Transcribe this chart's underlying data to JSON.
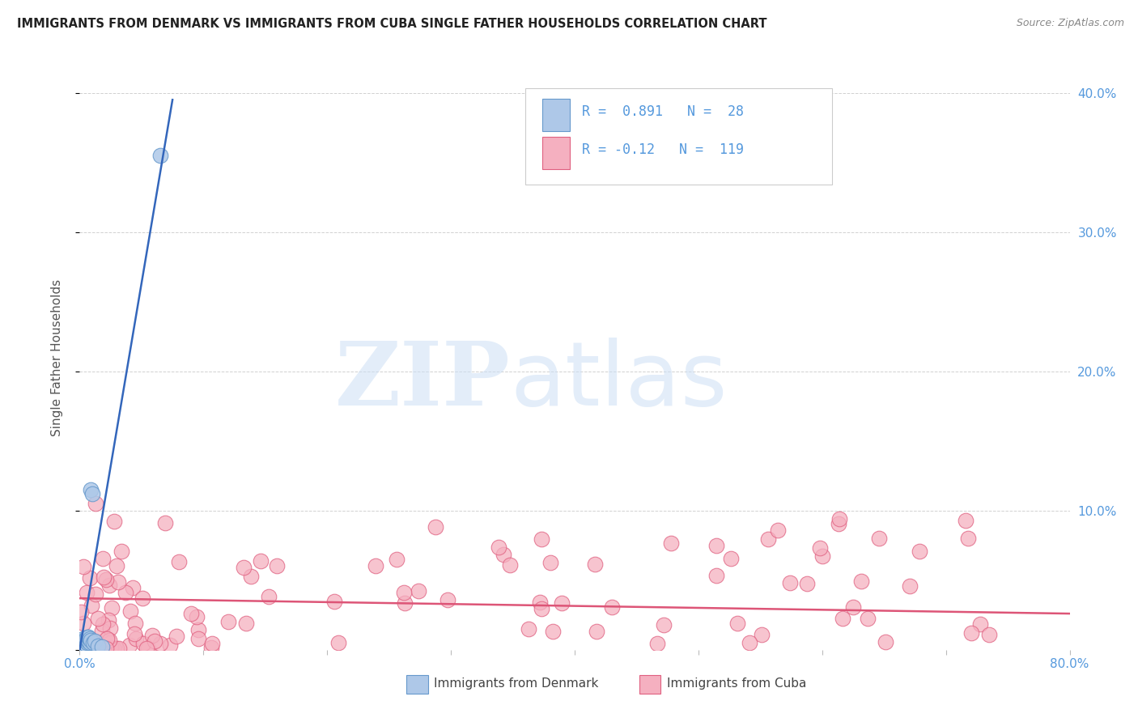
{
  "title": "IMMIGRANTS FROM DENMARK VS IMMIGRANTS FROM CUBA SINGLE FATHER HOUSEHOLDS CORRELATION CHART",
  "source": "Source: ZipAtlas.com",
  "ylabel": "Single Father Households",
  "xlim": [
    0.0,
    0.8
  ],
  "ylim": [
    0.0,
    0.42
  ],
  "x_ticks": [
    0.0,
    0.1,
    0.2,
    0.3,
    0.4,
    0.5,
    0.6,
    0.7,
    0.8
  ],
  "y_ticks": [
    0.0,
    0.1,
    0.2,
    0.3,
    0.4
  ],
  "y_tick_labels_right": [
    "",
    "10.0%",
    "20.0%",
    "30.0%",
    "40.0%"
  ],
  "denmark_color": "#aec8e8",
  "denmark_edge_color": "#6699cc",
  "cuba_color": "#f5b0c0",
  "cuba_edge_color": "#e06080",
  "denmark_line_color": "#3366bb",
  "cuba_line_color": "#dd5577",
  "denmark_R": 0.891,
  "denmark_N": 28,
  "cuba_R": -0.12,
  "cuba_N": 119,
  "tick_color": "#5599dd",
  "denmark_scatter_x": [
    0.001,
    0.001,
    0.002,
    0.002,
    0.003,
    0.003,
    0.003,
    0.004,
    0.004,
    0.004,
    0.005,
    0.005,
    0.005,
    0.006,
    0.006,
    0.006,
    0.007,
    0.007,
    0.008,
    0.008,
    0.009,
    0.009,
    0.01,
    0.011,
    0.012,
    0.015,
    0.018,
    0.065
  ],
  "denmark_scatter_y": [
    0.005,
    0.003,
    0.004,
    0.006,
    0.004,
    0.006,
    0.008,
    0.005,
    0.007,
    0.003,
    0.004,
    0.006,
    0.008,
    0.005,
    0.007,
    0.009,
    0.006,
    0.009,
    0.005,
    0.008,
    0.007,
    0.115,
    0.112,
    0.005,
    0.006,
    0.003,
    0.002,
    0.355
  ],
  "denmark_line_x": [
    0.0,
    0.075
  ],
  "denmark_line_y": [
    0.0,
    0.395
  ],
  "cuba_line_x": [
    0.0,
    0.8
  ],
  "cuba_line_y": [
    0.037,
    0.026
  ]
}
